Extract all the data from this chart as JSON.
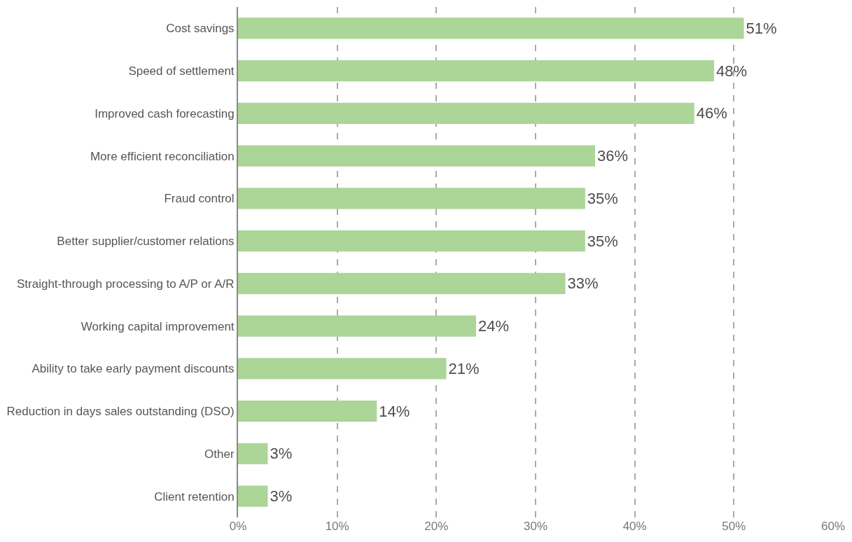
{
  "chart_data": {
    "type": "bar",
    "orientation": "horizontal",
    "categories": [
      "Cost savings",
      "Speed of settlement",
      "Improved cash forecasting",
      "More efficient reconciliation",
      "Fraud control",
      "Better supplier/customer relations",
      "Straight-through processing to A/P or A/R",
      "Working capital improvement",
      "Ability to take early payment discounts",
      "Reduction in days sales outstanding (DSO)",
      "Other",
      "Client retention"
    ],
    "values": [
      51,
      48,
      46,
      36,
      35,
      35,
      33,
      24,
      21,
      14,
      3,
      3
    ],
    "value_labels": [
      "51%",
      "48%",
      "46%",
      "36%",
      "35%",
      "35%",
      "33%",
      "24%",
      "21%",
      "14%",
      "3%",
      "3%"
    ],
    "color": "#acd598",
    "xlim": [
      0,
      60
    ],
    "xticks": [
      {
        "value": 0,
        "label": "0%"
      },
      {
        "value": 10,
        "label": "10%"
      },
      {
        "value": 20,
        "label": "20%"
      },
      {
        "value": 30,
        "label": "30%"
      },
      {
        "value": 40,
        "label": "40%"
      },
      {
        "value": 50,
        "label": "50%"
      },
      {
        "value": 60,
        "label": "60%"
      }
    ],
    "grid": "x",
    "line_style": "dashed",
    "legend": false
  }
}
